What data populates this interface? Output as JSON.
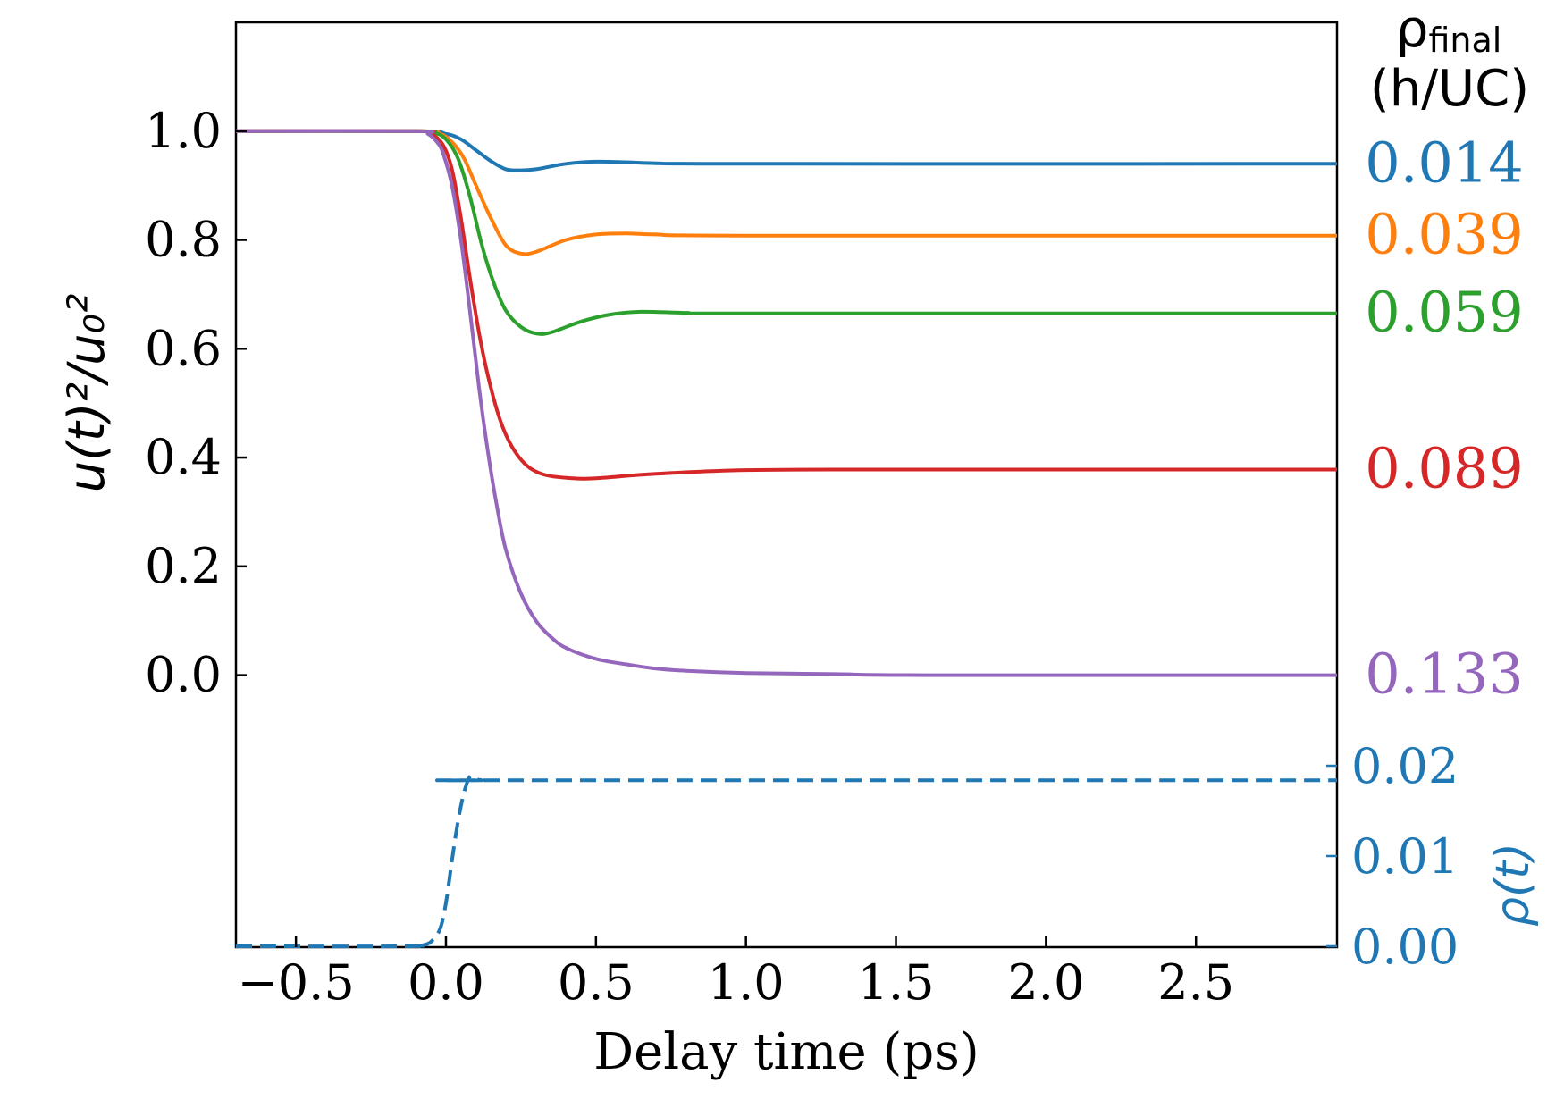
{
  "chart_data": {
    "type": "line",
    "xlabel": "Delay time (ps)",
    "ylabel": "u(t)²/u₀²",
    "xlim": [
      -0.7,
      2.97
    ],
    "xticks": [
      -0.5,
      0.0,
      0.5,
      1.0,
      1.5,
      2.0,
      2.5
    ],
    "xtick_labels": [
      "−0.5",
      "0.0",
      "0.5",
      "1.0",
      "1.5",
      "2.0",
      "2.5"
    ],
    "ylim": [
      -0.5,
      1.2
    ],
    "yticks": [
      0.0,
      0.2,
      0.4,
      0.6,
      0.8,
      1.0
    ],
    "ytick_labels": [
      "0.0",
      "0.2",
      "0.4",
      "0.6",
      "0.8",
      "1.0"
    ],
    "grid": false,
    "right_header": {
      "symbol": "ρ",
      "subscript": "final",
      "unit": "(h/UC)"
    },
    "series": [
      {
        "label": "0.014",
        "color": "#1f77b4",
        "points": [
          [
            -0.7,
            1.0
          ],
          [
            -0.1,
            1.0
          ],
          [
            0.0,
            0.995
          ],
          [
            0.05,
            0.985
          ],
          [
            0.1,
            0.965
          ],
          [
            0.15,
            0.945
          ],
          [
            0.2,
            0.93
          ],
          [
            0.25,
            0.928
          ],
          [
            0.3,
            0.93
          ],
          [
            0.4,
            0.94
          ],
          [
            0.5,
            0.944
          ],
          [
            0.6,
            0.943
          ],
          [
            0.7,
            0.941
          ],
          [
            1.0,
            0.94
          ],
          [
            2.97,
            0.94
          ]
        ]
      },
      {
        "label": "0.039",
        "color": "#ff7f0e",
        "points": [
          [
            -0.7,
            1.0
          ],
          [
            -0.1,
            1.0
          ],
          [
            -0.02,
            0.995
          ],
          [
            0.02,
            0.98
          ],
          [
            0.06,
            0.95
          ],
          [
            0.1,
            0.9
          ],
          [
            0.15,
            0.84
          ],
          [
            0.2,
            0.79
          ],
          [
            0.25,
            0.775
          ],
          [
            0.3,
            0.778
          ],
          [
            0.4,
            0.8
          ],
          [
            0.5,
            0.81
          ],
          [
            0.6,
            0.812
          ],
          [
            0.7,
            0.81
          ],
          [
            1.0,
            0.808
          ],
          [
            2.97,
            0.808
          ]
        ]
      },
      {
        "label": "0.059",
        "color": "#2ca02c",
        "points": [
          [
            -0.7,
            1.0
          ],
          [
            -0.1,
            1.0
          ],
          [
            -0.04,
            0.997
          ],
          [
            0.0,
            0.985
          ],
          [
            0.04,
            0.95
          ],
          [
            0.08,
            0.88
          ],
          [
            0.12,
            0.79
          ],
          [
            0.16,
            0.72
          ],
          [
            0.2,
            0.67
          ],
          [
            0.25,
            0.64
          ],
          [
            0.3,
            0.628
          ],
          [
            0.35,
            0.63
          ],
          [
            0.45,
            0.65
          ],
          [
            0.55,
            0.663
          ],
          [
            0.65,
            0.668
          ],
          [
            0.8,
            0.666
          ],
          [
            1.0,
            0.665
          ],
          [
            2.97,
            0.665
          ]
        ]
      },
      {
        "label": "0.089",
        "color": "#d62728",
        "points": [
          [
            -0.7,
            1.0
          ],
          [
            -0.1,
            1.0
          ],
          [
            -0.05,
            0.995
          ],
          [
            -0.01,
            0.975
          ],
          [
            0.02,
            0.93
          ],
          [
            0.05,
            0.84
          ],
          [
            0.08,
            0.73
          ],
          [
            0.11,
            0.63
          ],
          [
            0.14,
            0.55
          ],
          [
            0.18,
            0.47
          ],
          [
            0.22,
            0.42
          ],
          [
            0.27,
            0.385
          ],
          [
            0.33,
            0.368
          ],
          [
            0.42,
            0.362
          ],
          [
            0.5,
            0.362
          ],
          [
            0.7,
            0.37
          ],
          [
            1.0,
            0.377
          ],
          [
            1.5,
            0.378
          ],
          [
            2.97,
            0.378
          ]
        ]
      },
      {
        "label": "0.133",
        "color": "#9467bd",
        "points": [
          [
            -0.7,
            1.0
          ],
          [
            -0.1,
            1.0
          ],
          [
            -0.06,
            0.995
          ],
          [
            -0.03,
            0.98
          ],
          [
            -0.01,
            0.96
          ],
          [
            0.02,
            0.9
          ],
          [
            0.05,
            0.8
          ],
          [
            0.08,
            0.67
          ],
          [
            0.11,
            0.53
          ],
          [
            0.14,
            0.41
          ],
          [
            0.17,
            0.31
          ],
          [
            0.2,
            0.23
          ],
          [
            0.25,
            0.15
          ],
          [
            0.3,
            0.1
          ],
          [
            0.35,
            0.07
          ],
          [
            0.4,
            0.05
          ],
          [
            0.5,
            0.03
          ],
          [
            0.6,
            0.02
          ],
          [
            0.7,
            0.012
          ],
          [
            0.8,
            0.008
          ],
          [
            1.0,
            0.004
          ],
          [
            1.3,
            0.002
          ],
          [
            1.6,
            0.0
          ],
          [
            2.97,
            0.0
          ]
        ]
      }
    ],
    "rho_axis": {
      "label": "ρ(t)",
      "color": "#1f77b4",
      "ylim": [
        0.0,
        0.0202
      ],
      "yticks": [
        0.0,
        0.01,
        0.02
      ],
      "ytick_labels": [
        "0.00",
        "0.01",
        "0.02"
      ],
      "series": {
        "style": "dashed",
        "color": "#1f77b4",
        "points": [
          [
            -0.7,
            0.0
          ],
          [
            -0.12,
            0.0
          ],
          [
            -0.08,
            0.0001
          ],
          [
            -0.05,
            0.0005
          ],
          [
            -0.02,
            0.0019
          ],
          [
            0.0,
            0.0048
          ],
          [
            0.02,
            0.0095
          ],
          [
            0.04,
            0.0138
          ],
          [
            0.06,
            0.017
          ],
          [
            0.08,
            0.0188
          ],
          [
            0.1,
            0.0186
          ],
          [
            0.12,
            0.0184
          ],
          [
            0.2,
            0.0184
          ],
          [
            2.97,
            0.0184
          ]
        ]
      }
    }
  }
}
